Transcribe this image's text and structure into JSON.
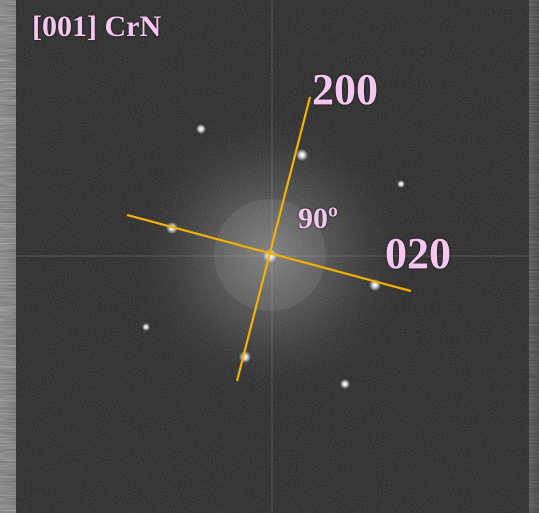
{
  "image": {
    "title": "[001] CrN",
    "labels": {
      "plane_200": "200",
      "plane_020": "020",
      "angle": "90º"
    },
    "colors": {
      "label": "#f6c7f1",
      "guide_lines": "#f1b100",
      "background": "#111111"
    }
  }
}
